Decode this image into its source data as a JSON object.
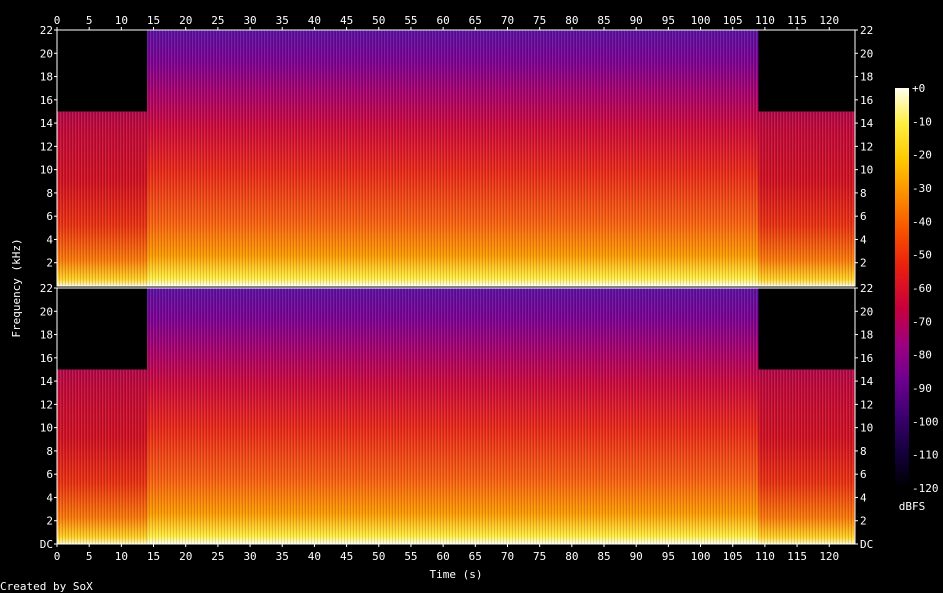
{
  "chart_data": {
    "type": "heatmap",
    "title": "",
    "xlabel": "Time (s)",
    "ylabel": "Frequency (kHz)",
    "colorbar_label": "dBFS",
    "credit": "Created by SoX",
    "xlim": [
      0,
      124
    ],
    "ylim": [
      0,
      22
    ],
    "x_ticks": [
      "0",
      "5",
      "10",
      "15",
      "20",
      "25",
      "30",
      "35",
      "40",
      "45",
      "50",
      "55",
      "60",
      "65",
      "70",
      "75",
      "80",
      "85",
      "90",
      "95",
      "100",
      "105",
      "110",
      "115",
      "120"
    ],
    "y_ticks": [
      "DC",
      "2",
      "4",
      "6",
      "8",
      "10",
      "12",
      "14",
      "16",
      "18",
      "20",
      "22"
    ],
    "colorbar_ticks": [
      "+0",
      "-10",
      "-20",
      "-30",
      "-40",
      "-50",
      "-60",
      "-70",
      "-80",
      "-90",
      "-100",
      "-110",
      "-120"
    ],
    "colorbar_range": [
      -120,
      0
    ],
    "channels": 2,
    "colors": {
      "background": "#000000",
      "text": "#ffffff",
      "colormap": [
        "#000000",
        "#14003c",
        "#3c0070",
        "#6e0090",
        "#9e0080",
        "#c8003c",
        "#e81e10",
        "#f85000",
        "#fd8c00",
        "#ffc800",
        "#ffee40",
        "#fffff0"
      ]
    },
    "segments": [
      {
        "t0": 0,
        "t1": 14,
        "cutoff_khz": 15,
        "level": "high-dynamics"
      },
      {
        "t0": 14,
        "t1": 109,
        "cutoff_khz": 22,
        "level": "dense"
      },
      {
        "t0": 109,
        "t1": 124,
        "cutoff_khz": 15,
        "level": "high-dynamics"
      }
    ]
  }
}
